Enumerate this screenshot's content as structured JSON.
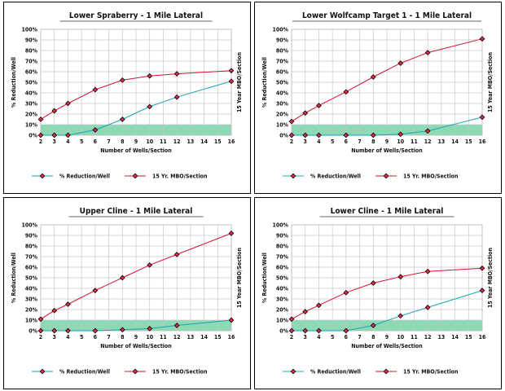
{
  "chart_data": [
    {
      "type": "line",
      "title": "Lower Spraberry - 1 Mile Lateral",
      "xlabel": "Number of Wells/Section",
      "ylabel": "% Reduction/Well",
      "y2label": "15 Year MBO/Section",
      "x": [
        2,
        3,
        4,
        6,
        8,
        10,
        12,
        16
      ],
      "xticks": [
        "2",
        "3",
        "4",
        "5",
        "6",
        "7",
        "8",
        "9",
        "10",
        "11",
        "12",
        "13",
        "14",
        "15",
        "16"
      ],
      "yticks": [
        "0%",
        "10%",
        "20%",
        "30%",
        "40%",
        "50%",
        "60%",
        "70%",
        "80%",
        "90%",
        "100%"
      ],
      "ylim": [
        0,
        100
      ],
      "threshold_band": [
        0,
        10
      ],
      "series": [
        {
          "name": "% Reduction/Well",
          "color": "#1aa3b8",
          "values": [
            0,
            0,
            0,
            5,
            15,
            27,
            36,
            51
          ]
        },
        {
          "name": "15 Yr. MBO/Section",
          "color": "#d4142a",
          "values": [
            15,
            23,
            30,
            43,
            52,
            56,
            58,
            61
          ]
        }
      ]
    },
    {
      "type": "line",
      "title": "Lower Wolfcamp Target 1 - 1 Mile Lateral",
      "xlabel": "Number of Wells/Section",
      "ylabel": "% Reduction/Well",
      "y2label": "15 Year MBO/Section",
      "x": [
        2,
        3,
        4,
        6,
        8,
        10,
        12,
        16
      ],
      "xticks": [
        "2",
        "3",
        "4",
        "5",
        "6",
        "7",
        "8",
        "9",
        "10",
        "11",
        "12",
        "13",
        "14",
        "15",
        "16"
      ],
      "yticks": [
        "0%",
        "10%",
        "20%",
        "30%",
        "40%",
        "50%",
        "60%",
        "70%",
        "80%",
        "90%",
        "100%"
      ],
      "ylim": [
        0,
        100
      ],
      "threshold_band": [
        0,
        10
      ],
      "series": [
        {
          "name": "% Reduction/Well",
          "color": "#1aa3b8",
          "values": [
            0,
            0,
            0,
            0,
            0,
            1,
            4,
            17
          ]
        },
        {
          "name": "15 Yr. MBO/Section",
          "color": "#d4142a",
          "values": [
            13,
            21,
            28,
            41,
            55,
            68,
            78,
            91
          ]
        }
      ]
    },
    {
      "type": "line",
      "title": "Upper Cline - 1 Mile Lateral",
      "xlabel": "Number of Wells/Section",
      "ylabel": "% Reduction/Well",
      "y2label": "15 Year MBO/Section",
      "x": [
        2,
        3,
        4,
        6,
        8,
        10,
        12,
        16
      ],
      "xticks": [
        "2",
        "3",
        "4",
        "5",
        "6",
        "7",
        "8",
        "9",
        "10",
        "11",
        "12",
        "13",
        "14",
        "15",
        "16"
      ],
      "yticks": [
        "0%",
        "10%",
        "20%",
        "30%",
        "40%",
        "50%",
        "60%",
        "70%",
        "80%",
        "90%",
        "100%"
      ],
      "ylim": [
        0,
        100
      ],
      "threshold_band": [
        0,
        10
      ],
      "series": [
        {
          "name": "% Reduction/Well",
          "color": "#1aa3b8",
          "values": [
            0,
            0,
            0,
            0,
            1,
            2,
            5,
            10
          ]
        },
        {
          "name": "15 Yr. MBO/Section",
          "color": "#d4142a",
          "values": [
            11,
            19,
            25,
            38,
            50,
            62,
            72,
            92
          ]
        }
      ]
    },
    {
      "type": "line",
      "title": "Lower Cline - 1 Mile Lateral",
      "xlabel": "Number of Wells/Section",
      "ylabel": "% Reduction/Well",
      "y2label": "15 Year MBO/Section",
      "x": [
        2,
        3,
        4,
        6,
        8,
        10,
        12,
        16
      ],
      "xticks": [
        "2",
        "3",
        "4",
        "5",
        "6",
        "7",
        "8",
        "9",
        "10",
        "11",
        "12",
        "13",
        "14",
        "15",
        "16"
      ],
      "yticks": [
        "0%",
        "10%",
        "20%",
        "30%",
        "40%",
        "50%",
        "60%",
        "70%",
        "80%",
        "90%",
        "100%"
      ],
      "ylim": [
        0,
        100
      ],
      "threshold_band": [
        0,
        10
      ],
      "series": [
        {
          "name": "% Reduction/Well",
          "color": "#1aa3b8",
          "values": [
            0,
            0,
            0,
            0,
            5,
            14,
            22,
            38
          ]
        },
        {
          "name": "15 Yr. MBO/Section",
          "color": "#d4142a",
          "values": [
            11,
            18,
            24,
            36,
            45,
            51,
            56,
            59
          ]
        }
      ]
    }
  ]
}
